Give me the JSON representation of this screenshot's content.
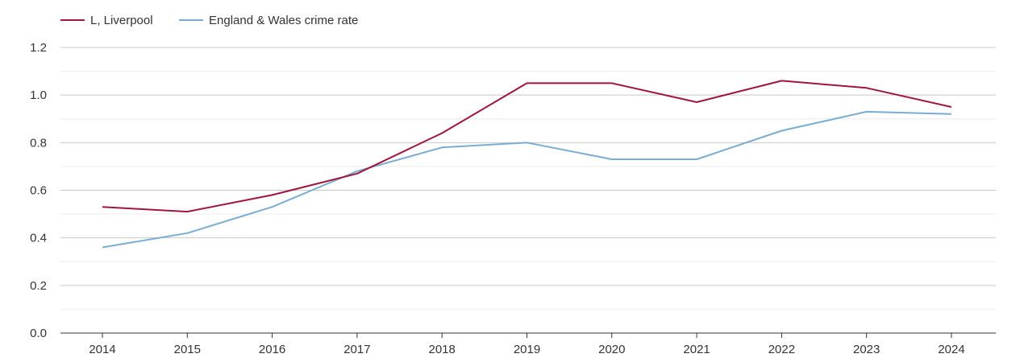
{
  "chart_data": {
    "type": "line",
    "title": "",
    "xlabel": "",
    "ylabel": "",
    "categories": [
      "2014",
      "2015",
      "2016",
      "2017",
      "2018",
      "2019",
      "2020",
      "2021",
      "2022",
      "2023",
      "2024"
    ],
    "ylim": [
      0,
      1.2
    ],
    "yticks": [
      "0.0",
      "0.2",
      "0.4",
      "0.6",
      "0.8",
      "1.0",
      "1.2"
    ],
    "grid": true,
    "legend_position": "top-left",
    "series": [
      {
        "name": "L, Liverpool",
        "color": "#a0153e",
        "values": [
          0.53,
          0.51,
          0.58,
          0.67,
          0.84,
          1.05,
          1.05,
          0.97,
          1.06,
          1.03,
          0.95
        ]
      },
      {
        "name": "England & Wales crime rate",
        "color": "#7aadd0",
        "values": [
          0.36,
          0.42,
          0.53,
          0.68,
          0.78,
          0.8,
          0.73,
          0.73,
          0.85,
          0.93,
          0.92
        ]
      }
    ]
  }
}
